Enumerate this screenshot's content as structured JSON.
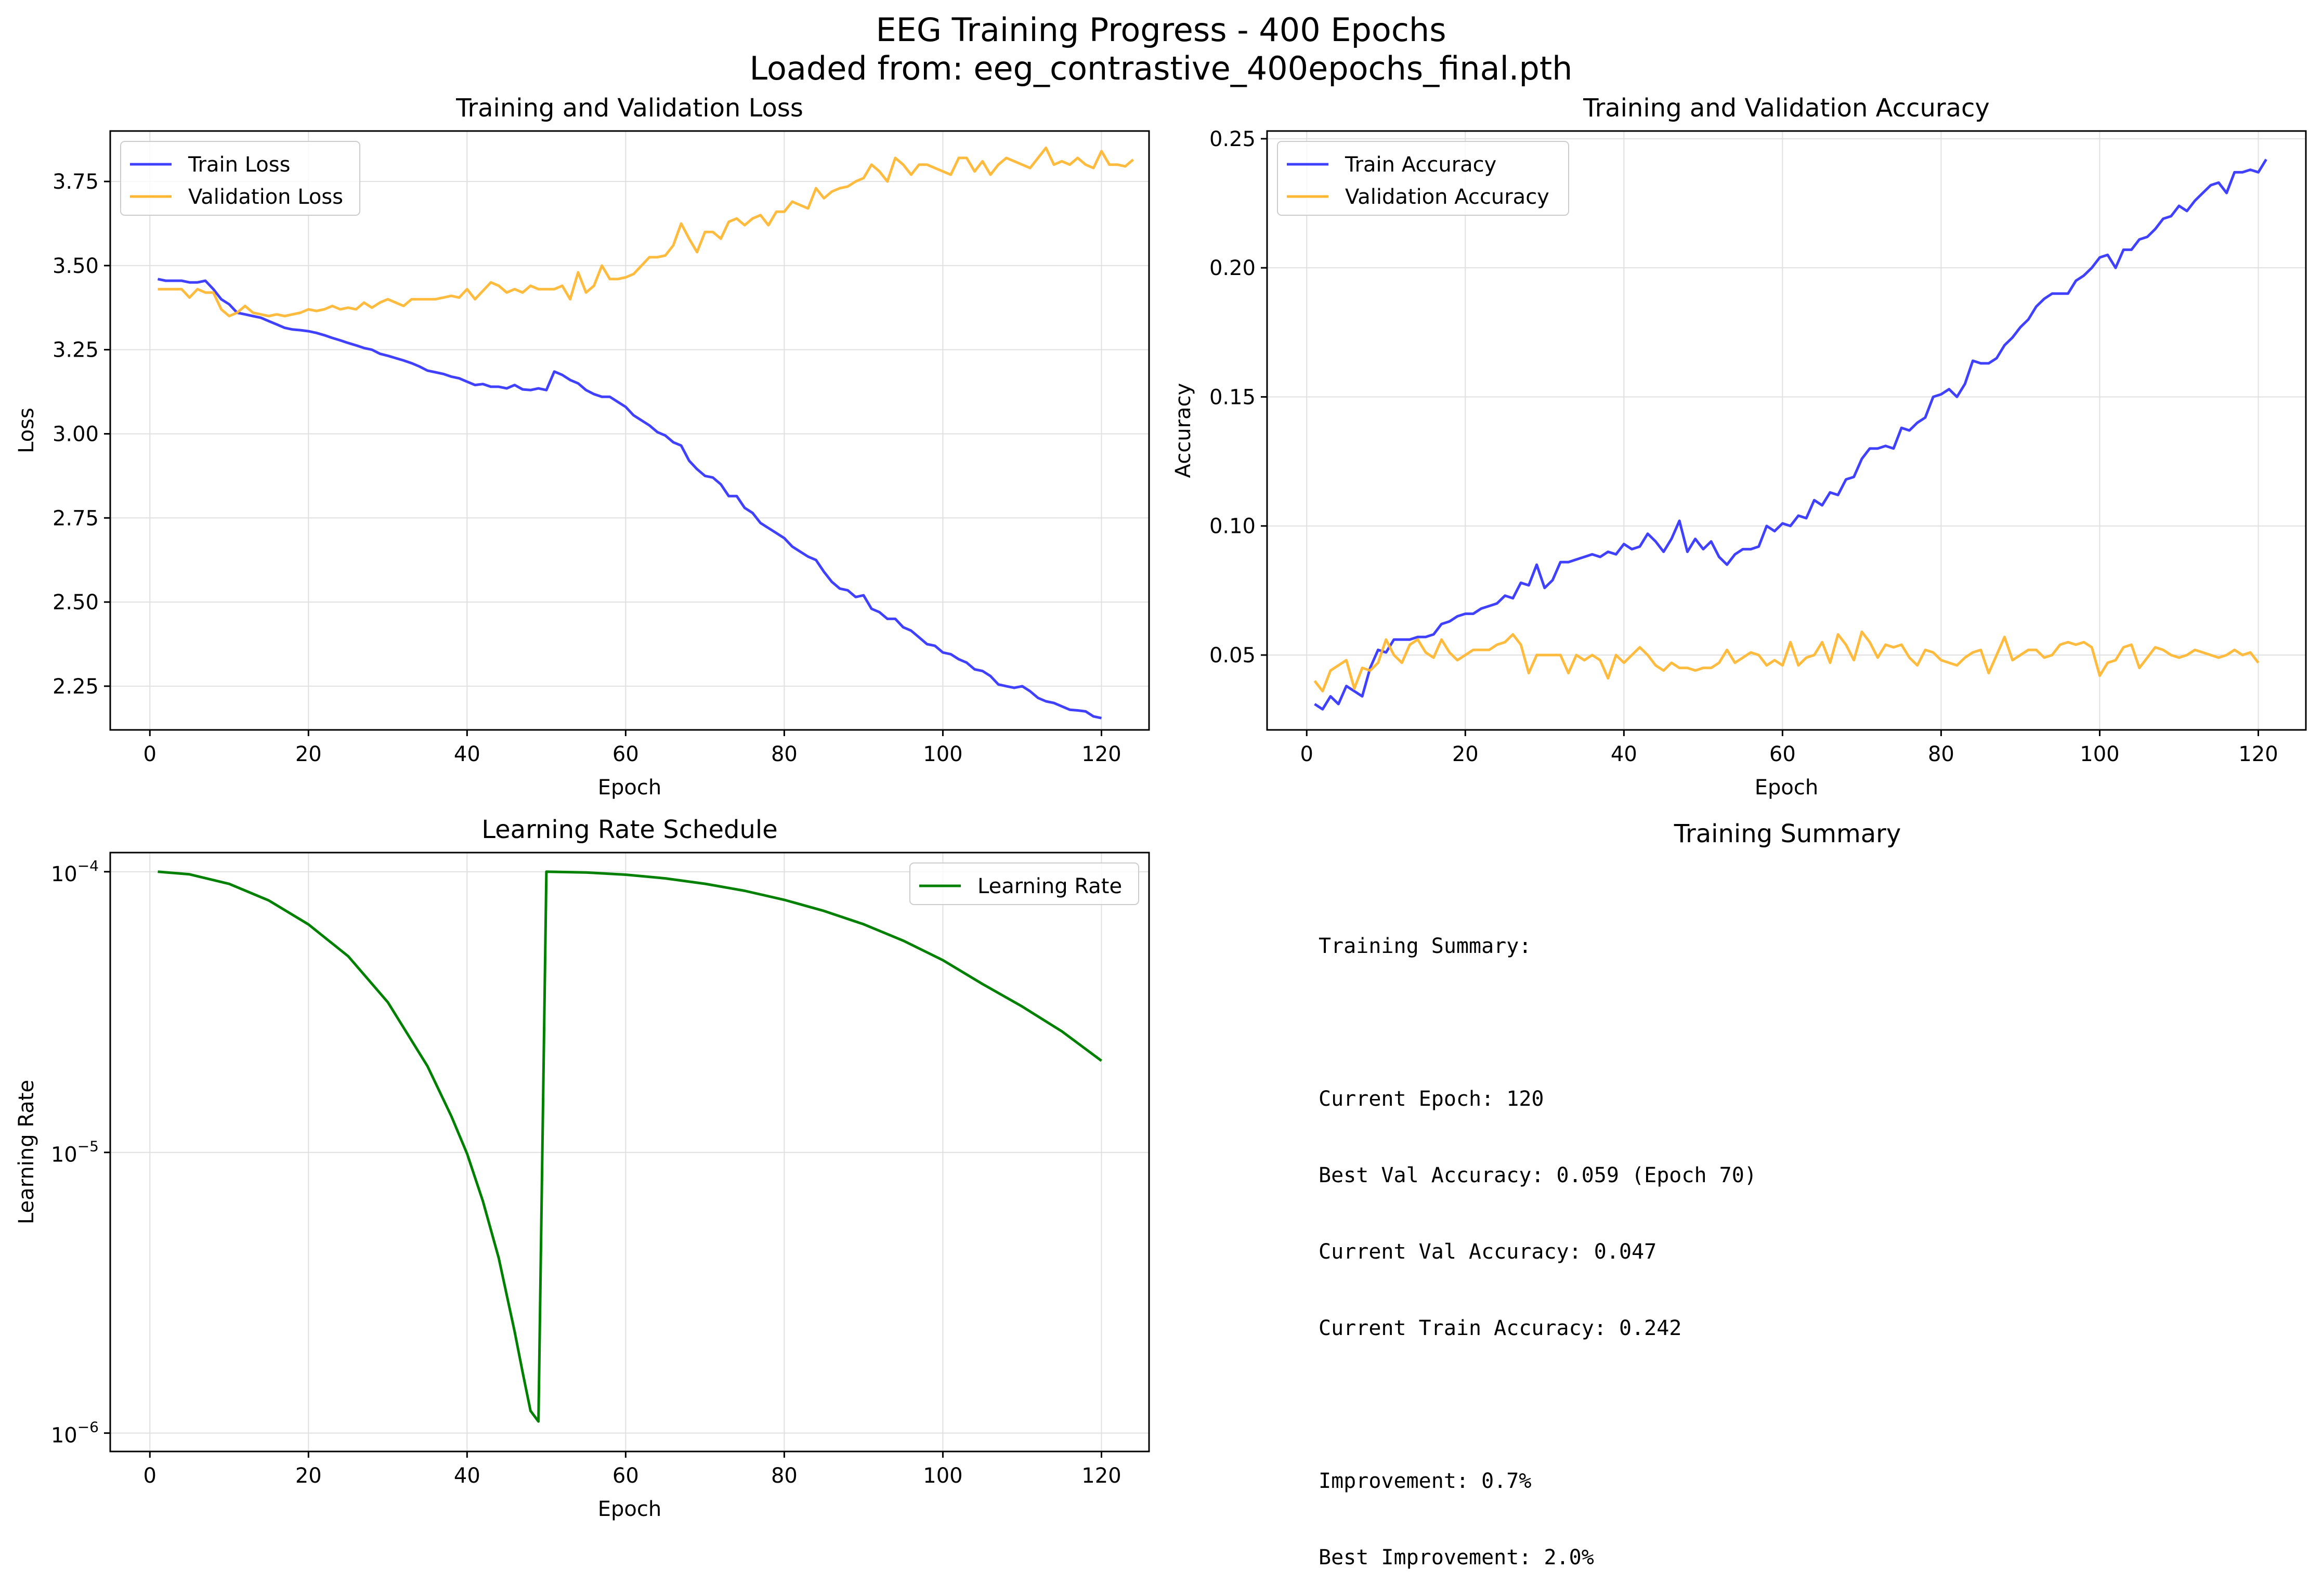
{
  "figure": {
    "title": "EEG Training Progress - 400 Epochs",
    "subtitle": "Loaded from: eeg_contrastive_400epochs_final.pth"
  },
  "colors": {
    "train": "#4040ff",
    "val": "#ffb733",
    "lr": "#008000",
    "grid": "#e0e0e0"
  },
  "chart_data": [
    {
      "id": "loss",
      "type": "line",
      "title": "Training and Validation Loss",
      "xlabel": "Epoch",
      "ylabel": "Loss",
      "xlim": [
        -5,
        126
      ],
      "ylim": [
        2.12,
        3.9
      ],
      "xticks": [
        0,
        20,
        40,
        60,
        80,
        100,
        120
      ],
      "yticks": [
        2.25,
        2.5,
        2.75,
        3.0,
        3.25,
        3.5,
        3.75
      ],
      "ytick_labels": [
        "2.25",
        "2.50",
        "2.75",
        "3.00",
        "3.25",
        "3.50",
        "3.75"
      ],
      "grid": true,
      "legend": "upper left",
      "series": [
        {
          "name": "Train Loss",
          "color": "#4040ff",
          "x_start": 1,
          "values": [
            3.46,
            3.455,
            3.455,
            3.455,
            3.45,
            3.45,
            3.455,
            3.43,
            3.4,
            3.385,
            3.36,
            3.355,
            3.35,
            3.345,
            3.335,
            3.325,
            3.315,
            3.31,
            3.308,
            3.305,
            3.3,
            3.293,
            3.285,
            3.278,
            3.27,
            3.263,
            3.255,
            3.25,
            3.238,
            3.232,
            3.225,
            3.218,
            3.21,
            3.2,
            3.188,
            3.183,
            3.178,
            3.17,
            3.165,
            3.155,
            3.145,
            3.148,
            3.14,
            3.14,
            3.135,
            3.145,
            3.132,
            3.13,
            3.135,
            3.13,
            3.185,
            3.175,
            3.16,
            3.15,
            3.13,
            3.118,
            3.11,
            3.11,
            3.095,
            3.08,
            3.055,
            3.04,
            3.025,
            3.005,
            2.995,
            2.975,
            2.965,
            2.92,
            2.895,
            2.875,
            2.87,
            2.85,
            2.815,
            2.815,
            2.78,
            2.765,
            2.735,
            2.72,
            2.705,
            2.69,
            2.665,
            2.65,
            2.635,
            2.625,
            2.59,
            2.56,
            2.54,
            2.535,
            2.515,
            2.52,
            2.48,
            2.47,
            2.45,
            2.45,
            2.425,
            2.415,
            2.395,
            2.375,
            2.37,
            2.35,
            2.345,
            2.33,
            2.32,
            2.3,
            2.295,
            2.28,
            2.255,
            2.25,
            2.245,
            2.25,
            2.235,
            2.215,
            2.205,
            2.2,
            2.19,
            2.18,
            2.178,
            2.175,
            2.16,
            2.155
          ]
        },
        {
          "name": "Validation Loss",
          "color": "#ffb733",
          "x_start": 1,
          "values": [
            3.43,
            3.43,
            3.43,
            3.43,
            3.405,
            3.43,
            3.42,
            3.42,
            3.37,
            3.35,
            3.36,
            3.38,
            3.36,
            3.355,
            3.35,
            3.355,
            3.35,
            3.355,
            3.36,
            3.37,
            3.365,
            3.37,
            3.38,
            3.37,
            3.375,
            3.37,
            3.39,
            3.375,
            3.39,
            3.4,
            3.39,
            3.38,
            3.4,
            3.4,
            3.4,
            3.4,
            3.405,
            3.41,
            3.405,
            3.43,
            3.4,
            3.425,
            3.45,
            3.44,
            3.42,
            3.43,
            3.42,
            3.44,
            3.43,
            3.43,
            3.43,
            3.44,
            3.4,
            3.48,
            3.42,
            3.44,
            3.5,
            3.46,
            3.46,
            3.465,
            3.475,
            3.5,
            3.525,
            3.525,
            3.53,
            3.56,
            3.625,
            3.58,
            3.54,
            3.6,
            3.6,
            3.58,
            3.63,
            3.64,
            3.62,
            3.64,
            3.65,
            3.62,
            3.66,
            3.66,
            3.69,
            3.68,
            3.67,
            3.73,
            3.7,
            3.72,
            3.73,
            3.735,
            3.75,
            3.76,
            3.8,
            3.78,
            3.75,
            3.82,
            3.8,
            3.77,
            3.8,
            3.8,
            3.79,
            3.78,
            3.77,
            3.82,
            3.82,
            3.78,
            3.81,
            3.77,
            3.8,
            3.82,
            3.81,
            3.8,
            3.79,
            3.82,
            3.85,
            3.8,
            3.81,
            3.8,
            3.82,
            3.8,
            3.79,
            3.84,
            3.8,
            3.8,
            3.795,
            3.815
          ]
        }
      ]
    },
    {
      "id": "acc",
      "type": "line",
      "title": "Training and Validation Accuracy",
      "xlabel": "Epoch",
      "ylabel": "Accuracy",
      "xlim": [
        -5,
        126
      ],
      "ylim": [
        0.021,
        0.253
      ],
      "xticks": [
        0,
        20,
        40,
        60,
        80,
        100,
        120
      ],
      "yticks": [
        0.05,
        0.1,
        0.15,
        0.2,
        0.25
      ],
      "ytick_labels": [
        "0.05",
        "0.10",
        "0.15",
        "0.20",
        "0.25"
      ],
      "grid": true,
      "legend": "upper left",
      "series": [
        {
          "name": "Train Accuracy",
          "color": "#4040ff",
          "x_start": 1,
          "values": [
            0.031,
            0.029,
            0.034,
            0.031,
            0.038,
            0.036,
            0.034,
            0.045,
            0.052,
            0.051,
            0.056,
            0.056,
            0.056,
            0.057,
            0.057,
            0.058,
            0.062,
            0.063,
            0.065,
            0.066,
            0.066,
            0.068,
            0.069,
            0.07,
            0.073,
            0.072,
            0.078,
            0.077,
            0.085,
            0.076,
            0.079,
            0.086,
            0.086,
            0.087,
            0.088,
            0.089,
            0.088,
            0.09,
            0.089,
            0.093,
            0.091,
            0.092,
            0.097,
            0.094,
            0.09,
            0.095,
            0.102,
            0.09,
            0.095,
            0.091,
            0.094,
            0.088,
            0.085,
            0.089,
            0.091,
            0.091,
            0.092,
            0.1,
            0.098,
            0.101,
            0.1,
            0.104,
            0.103,
            0.11,
            0.108,
            0.113,
            0.112,
            0.118,
            0.119,
            0.126,
            0.13,
            0.13,
            0.131,
            0.13,
            0.138,
            0.137,
            0.14,
            0.142,
            0.15,
            0.151,
            0.153,
            0.15,
            0.155,
            0.164,
            0.163,
            0.163,
            0.165,
            0.17,
            0.173,
            0.177,
            0.18,
            0.185,
            0.188,
            0.19,
            0.19,
            0.19,
            0.195,
            0.197,
            0.2,
            0.204,
            0.205,
            0.2,
            0.207,
            0.207,
            0.211,
            0.212,
            0.215,
            0.219,
            0.22,
            0.224,
            0.222,
            0.226,
            0.229,
            0.232,
            0.233,
            0.229,
            0.237,
            0.237,
            0.238,
            0.237,
            0.242
          ]
        },
        {
          "name": "Validation Accuracy",
          "color": "#ffb733",
          "x_start": 1,
          "values": [
            0.04,
            0.036,
            0.044,
            0.046,
            0.048,
            0.037,
            0.045,
            0.044,
            0.047,
            0.056,
            0.05,
            0.047,
            0.054,
            0.056,
            0.051,
            0.049,
            0.056,
            0.051,
            0.048,
            0.05,
            0.052,
            0.052,
            0.052,
            0.054,
            0.055,
            0.058,
            0.054,
            0.043,
            0.05,
            0.05,
            0.05,
            0.05,
            0.043,
            0.05,
            0.048,
            0.05,
            0.048,
            0.041,
            0.05,
            0.047,
            0.05,
            0.053,
            0.05,
            0.046,
            0.044,
            0.047,
            0.045,
            0.045,
            0.044,
            0.045,
            0.045,
            0.047,
            0.052,
            0.047,
            0.049,
            0.051,
            0.05,
            0.046,
            0.048,
            0.046,
            0.055,
            0.046,
            0.049,
            0.05,
            0.055,
            0.047,
            0.058,
            0.054,
            0.048,
            0.059,
            0.055,
            0.049,
            0.054,
            0.053,
            0.054,
            0.049,
            0.046,
            0.052,
            0.051,
            0.048,
            0.047,
            0.046,
            0.049,
            0.051,
            0.052,
            0.043,
            0.05,
            0.057,
            0.048,
            0.05,
            0.052,
            0.052,
            0.049,
            0.05,
            0.054,
            0.055,
            0.054,
            0.055,
            0.053,
            0.042,
            0.047,
            0.048,
            0.053,
            0.054,
            0.045,
            0.049,
            0.053,
            0.052,
            0.05,
            0.049,
            0.05,
            0.052,
            0.051,
            0.05,
            0.049,
            0.05,
            0.052,
            0.05,
            0.051,
            0.047
          ]
        }
      ]
    },
    {
      "id": "lr",
      "type": "line",
      "title": "Learning Rate Schedule",
      "xlabel": "Epoch",
      "ylabel": "Learning Rate",
      "xlim": [
        -5,
        126
      ],
      "yscale": "log",
      "ylim": [
        8.6e-07,
        0.000117
      ],
      "xticks": [
        0,
        20,
        40,
        60,
        80,
        100,
        120
      ],
      "yticks": [
        1e-06,
        1e-05,
        0.0001
      ],
      "ytick_labels": [
        "10",
        "10",
        "10"
      ],
      "ytick_exponents": [
        "−6",
        "−5",
        "−4"
      ],
      "grid": true,
      "legend": "upper right",
      "series": [
        {
          "name": "Learning Rate",
          "color": "#008000",
          "x": [
            1,
            5,
            10,
            15,
            20,
            25,
            30,
            35,
            38,
            40,
            42,
            44,
            46,
            47,
            48,
            49,
            50,
            55,
            60,
            65,
            70,
            75,
            80,
            85,
            90,
            95,
            100,
            105,
            110,
            115,
            120
          ],
          "values": [
            0.0001,
            9.79e-05,
            9.05e-05,
            7.9e-05,
            6.49e-05,
            5e-05,
            3.43e-05,
            2.03e-05,
            1.35e-05,
            9.9e-06,
            6.7e-06,
            4.2e-06,
            2.3e-06,
            1.65e-06,
            1.2e-06,
            1.1e-06,
            0.0001,
            9.94e-05,
            9.76e-05,
            9.47e-05,
            9.06e-05,
            8.55e-05,
            7.94e-05,
            7.25e-05,
            6.5e-05,
            5.68e-05,
            4.84e-05,
            3.98e-05,
            3.31e-05,
            2.7e-05,
            2.12e-05
          ]
        }
      ]
    }
  ],
  "summary": {
    "title": "Training Summary",
    "lines": [
      "Training Summary:",
      "",
      "Current Epoch: 120",
      "Best Val Accuracy: 0.059 (Epoch 70)",
      "Current Val Accuracy: 0.047",
      "Current Train Accuracy: 0.242",
      "",
      "Improvement: 0.7%",
      "Best Improvement: 2.0%"
    ]
  }
}
